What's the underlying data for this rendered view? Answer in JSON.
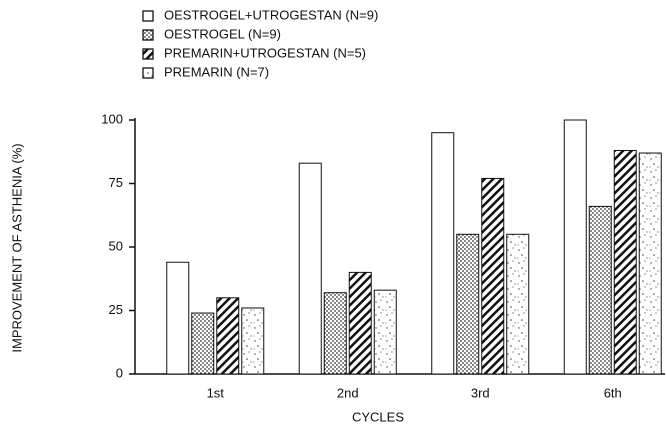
{
  "chart_data": {
    "type": "bar",
    "xlabel": "CYCLES",
    "ylabel": "IMPROVEMENT OF ASTHENIA (%)",
    "categories": [
      "1st",
      "2nd",
      "3rd",
      "6th"
    ],
    "series": [
      {
        "name": "OESTROGEL+UTROGESTAN (N=9)",
        "color": "#ffffff",
        "pattern": "none",
        "values": [
          44,
          83,
          95,
          100
        ]
      },
      {
        "name": "OESTROGEL (N=9)",
        "color": "#ffffff",
        "pattern": "dots",
        "values": [
          24,
          32,
          55,
          66
        ]
      },
      {
        "name": "PREMARIN+UTROGESTAN (N=5)",
        "color": "#ffffff",
        "pattern": "hatch",
        "values": [
          30,
          40,
          77,
          88
        ]
      },
      {
        "name": "PREMARIN (N=7)",
        "color": "#ffffff",
        "pattern": "speckle",
        "values": [
          26,
          33,
          55,
          87
        ]
      }
    ],
    "ylim": [
      0,
      100
    ],
    "yticks": [
      0,
      25,
      50,
      75,
      100
    ],
    "grid": false,
    "legend": "top-left"
  }
}
